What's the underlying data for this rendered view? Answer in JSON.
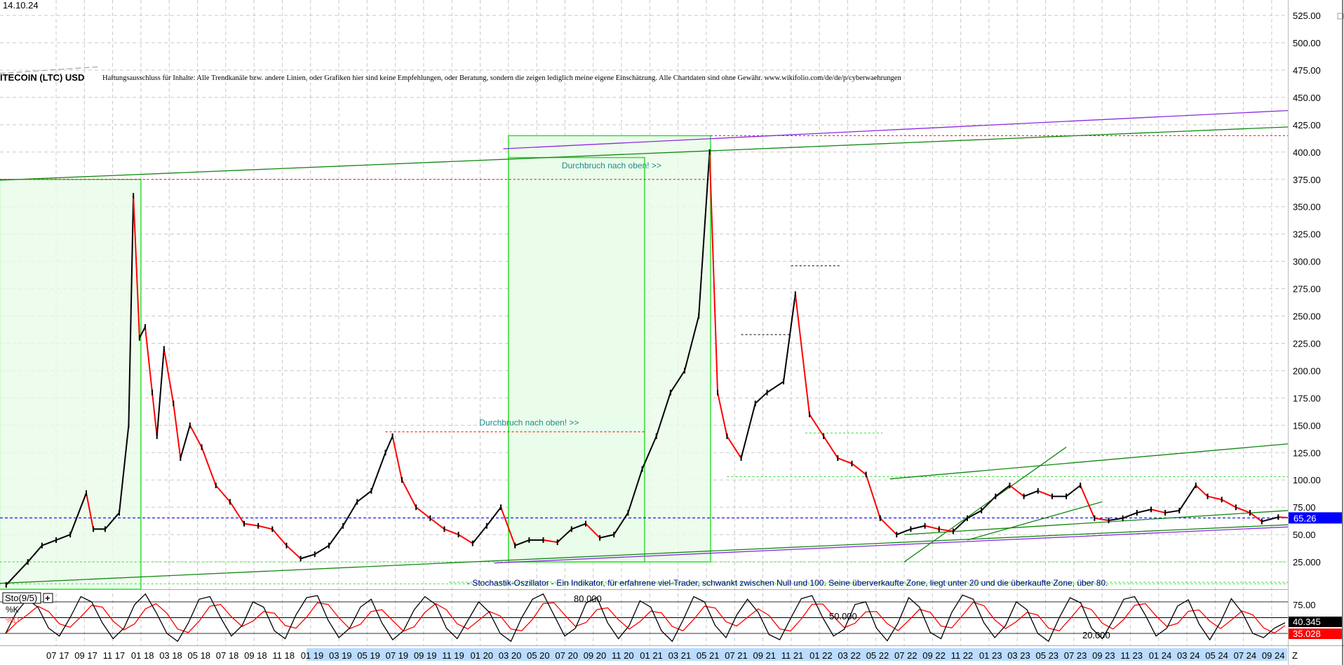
{
  "header": {
    "date": "14.10.24",
    "title": "ITECOIN (LTC) USD",
    "disclaimer": "Haftungsausschluss für Inhalte: Alle Trendkanäle bzw. andere Linien, oder Grafiken hier sind keine Empfehlungen, oder Beratung, sondern die zeigen lediglich meine eigene Einschätzung. Alle Chartdaten sind ohne Gewähr.  www.wikifolio.com/de/de/p/cyberwaehrungen"
  },
  "colors": {
    "up": "#000000",
    "down": "#ff0000",
    "box_fill": "#e8fbe8",
    "box_stroke": "#33dd33",
    "trend_green": "#118811",
    "trend_purple": "#8a2be2",
    "current_price": "#0000ff",
    "stoch_k": "#000000",
    "stoch_d": "#ff0000"
  },
  "chart_data": [
    {
      "type": "line",
      "title": "",
      "x_tick_labels": [
        "07 17",
        "09 17",
        "11 17",
        "01 18",
        "03 18",
        "05 18",
        "07 18",
        "09 18",
        "11 18",
        "01 19",
        "03 19",
        "05 19",
        "07 19",
        "09 19",
        "11 19",
        "01 20",
        "03 20",
        "05 20",
        "07 20",
        "09 20",
        "11 20",
        "01 21",
        "03 21",
        "05 21",
        "07 21",
        "09 21",
        "11 21",
        "01 22",
        "03 22",
        "05 22",
        "07 22",
        "09 22",
        "11 22",
        "01 23",
        "03 23",
        "05 23",
        "07 23",
        "09 23",
        "11 23",
        "01 24",
        "03 24",
        "05 24",
        "07 24",
        "09 24",
        "Z"
      ],
      "y_tick_labels": [
        "525.00",
        "500.00",
        "475.00",
        "450.00",
        "425.00",
        "400.00",
        "375.00",
        "350.00",
        "325.00",
        "300.00",
        "275.00",
        "250.00",
        "225.00",
        "200.00",
        "175.00",
        "150.00",
        "125.00",
        "100.00",
        "75.00",
        "50.00",
        "25.000"
      ],
      "ylim": [
        0,
        525
      ],
      "grid": true,
      "current_price": "65.26",
      "series": [
        {
          "x": [
            "2017-03-15",
            "2017-05-01",
            "2017-06-01",
            "2017-07-01",
            "2017-08-01",
            "2017-09-05",
            "2017-09-20",
            "2017-10-15",
            "2017-11-15",
            "2017-12-05",
            "2017-12-15",
            "2017-12-28",
            "2018-01-10",
            "2018-01-25",
            "2018-02-05",
            "2018-02-20",
            "2018-03-10",
            "2018-03-25",
            "2018-04-15",
            "2018-05-10",
            "2018-06-10",
            "2018-07-10",
            "2018-08-10",
            "2018-09-10",
            "2018-10-10",
            "2018-11-10",
            "2018-12-10",
            "2019-01-10",
            "2019-02-10",
            "2019-03-10",
            "2019-04-10",
            "2019-05-10",
            "2019-06-10",
            "2019-06-25",
            "2019-07-15",
            "2019-08-15",
            "2019-09-15",
            "2019-10-15",
            "2019-11-15",
            "2019-12-15",
            "2020-01-15",
            "2020-02-15",
            "2020-03-15",
            "2020-04-15",
            "2020-05-15",
            "2020-06-15",
            "2020-07-15",
            "2020-08-15",
            "2020-09-15",
            "2020-10-15",
            "2020-11-15",
            "2020-12-15",
            "2021-01-15",
            "2021-02-15",
            "2021-03-15",
            "2021-04-15",
            "2021-05-08",
            "2021-05-25",
            "2021-06-15",
            "2021-07-15",
            "2021-08-15",
            "2021-09-10",
            "2021-10-15",
            "2021-11-10",
            "2021-12-10",
            "2022-01-10",
            "2022-02-10",
            "2022-03-10",
            "2022-04-10",
            "2022-05-10",
            "2022-06-15",
            "2022-07-15",
            "2022-08-15",
            "2022-09-15",
            "2022-10-15",
            "2022-11-15",
            "2022-12-15",
            "2023-01-15",
            "2023-02-15",
            "2023-03-15",
            "2023-04-15",
            "2023-05-15",
            "2023-06-15",
            "2023-07-15",
            "2023-08-15",
            "2023-09-15",
            "2023-10-15",
            "2023-11-15",
            "2023-12-15",
            "2024-01-15",
            "2024-02-15",
            "2024-03-20",
            "2024-04-15",
            "2024-05-15",
            "2024-06-15",
            "2024-07-15",
            "2024-08-10",
            "2024-09-15",
            "2024-10-14"
          ],
          "y": [
            4,
            25,
            40,
            45,
            50,
            88,
            55,
            55,
            70,
            150,
            360,
            230,
            240,
            180,
            140,
            220,
            170,
            120,
            150,
            130,
            95,
            80,
            60,
            58,
            55,
            40,
            28,
            32,
            40,
            58,
            80,
            90,
            125,
            140,
            100,
            75,
            65,
            55,
            50,
            42,
            58,
            75,
            40,
            45,
            45,
            43,
            55,
            60,
            47,
            50,
            70,
            110,
            140,
            180,
            200,
            250,
            400,
            180,
            140,
            120,
            170,
            180,
            190,
            270,
            160,
            140,
            120,
            115,
            105,
            65,
            50,
            55,
            58,
            55,
            53,
            65,
            72,
            85,
            95,
            85,
            90,
            85,
            85,
            95,
            65,
            63,
            65,
            70,
            73,
            70,
            72,
            95,
            85,
            82,
            75,
            70,
            62,
            66,
            65.26
          ]
        }
      ],
      "annotations": {
        "boxes": [
          {
            "from": "2017-03-01",
            "to": "2017-12-31",
            "low": 0,
            "high": 375
          },
          {
            "from": "2020-03-01",
            "to": "2021-05-10",
            "low": 25,
            "high": 415
          },
          {
            "from": "2020-03-01",
            "to": "2020-12-20",
            "low": 25,
            "high": 395
          }
        ],
        "trendlines": [
          {
            "color": "trend_green",
            "from": [
              "2016-12-20",
              373
            ],
            "to": [
              "2024-10-14",
              423
            ],
            "style": "solid"
          },
          {
            "color": "trend_purple",
            "from": [
              "2020-02-20",
              403
            ],
            "to": [
              "2024-10-14",
              438
            ],
            "style": "solid"
          },
          {
            "color": "trend_green",
            "from": [
              "2016-12-20",
              4
            ],
            "to": [
              "2024-10-14",
              59
            ],
            "style": "solid"
          },
          {
            "color": "trend_purple",
            "from": [
              "2020-02-01",
              24
            ],
            "to": [
              "2024-10-14",
              57
            ],
            "style": "solid"
          },
          {
            "color": "trend_green",
            "from": [
              "2022-06-01",
              101
            ],
            "to": [
              "2024-10-14",
              133
            ],
            "style": "solid"
          },
          {
            "color": "trend_green",
            "from": [
              "2022-07-01",
              25
            ],
            "to": [
              "2023-06-15",
              130
            ],
            "style": "solid"
          },
          {
            "color": "trend_green",
            "from": [
              "2022-07-01",
              50
            ],
            "to": [
              "2024-10-14",
              72
            ],
            "style": "solid"
          },
          {
            "color": "trend_green",
            "from": [
              "2022-11-15",
              45
            ],
            "to": [
              "2023-09-01",
              80
            ],
            "style": "solid"
          },
          {
            "color": "#aaaaaa",
            "from": [
              "2016-12-20",
              470
            ],
            "to": [
              "2017-10-01",
              478
            ],
            "style": "dashed"
          }
        ],
        "levels": [
          {
            "price": 375,
            "from": "2016-12-20",
            "to": "2021-05-10",
            "color": "#ff0000"
          },
          {
            "price": 415,
            "from": "2021-05-10",
            "to": "2024-10-14",
            "color": "#ff0000"
          },
          {
            "price": 144,
            "from": "2019-06-10",
            "to": "2020-12-20",
            "color": "#ff0000"
          },
          {
            "price": 233,
            "from": "2021-07-15",
            "to": "2021-11-01",
            "color": "#000000"
          },
          {
            "price": 296,
            "from": "2021-11-01",
            "to": "2022-02-15",
            "color": "#000000"
          },
          {
            "price": 143,
            "from": "2021-12-01",
            "to": "2022-05-15",
            "color": "#33dd33"
          },
          {
            "price": 103,
            "from": "2021-06-15",
            "to": "2024-10-14",
            "color": "#33dd33"
          },
          {
            "price": 25,
            "from": "2016-12-20",
            "to": "2024-10-14",
            "color": "#33dd33"
          },
          {
            "price": 5,
            "from": "2016-12-20",
            "to": "2024-10-14",
            "color": "#33dd33"
          }
        ],
        "labels": [
          {
            "text": "Durchbruch nach oben! >>",
            "date": "2020-12-05",
            "price": 385
          },
          {
            "text": "Durchbruch nach oben! >>",
            "date": "2020-06-10",
            "price": 150
          }
        ],
        "stoch_description": "- Stochastik-Oszillator - Ein Indikator, für erfahrene viel-Trader, schwankt zwischen Null und 100. Seine überverkaufte Zone, liegt unter 20 und die überkaufte Zone, über 80."
      }
    },
    {
      "type": "line",
      "title": "Sto(9/5)",
      "legend": [
        "%K",
        "%D"
      ],
      "ylim": [
        0,
        100
      ],
      "levels": [
        "80.000",
        "50.000",
        "20.000"
      ],
      "y_tick_labels": [
        "75.00"
      ],
      "last_k": "40.345",
      "last_d": "35.028",
      "k": [
        20,
        60,
        85,
        70,
        30,
        15,
        50,
        90,
        80,
        40,
        10,
        30,
        75,
        95,
        60,
        20,
        5,
        40,
        85,
        90,
        50,
        15,
        35,
        80,
        70,
        25,
        10,
        55,
        88,
        92,
        45,
        12,
        30,
        70,
        85,
        40,
        8,
        25,
        65,
        90,
        75,
        30,
        10,
        45,
        80,
        60,
        20,
        5,
        50,
        85,
        95,
        55,
        15,
        30,
        78,
        88,
        40,
        10,
        35,
        82,
        70,
        25,
        5,
        45,
        90,
        80,
        35,
        12,
        55,
        85,
        60,
        18,
        8,
        48,
        86,
        92,
        50,
        15,
        28,
        75,
        80,
        30,
        6,
        40,
        88,
        70,
        22,
        10,
        60,
        93,
        85,
        40,
        12,
        35,
        80,
        65,
        20,
        5,
        50,
        88,
        78,
        30,
        10,
        45,
        85,
        90,
        55,
        15,
        30,
        72,
        84,
        38,
        8,
        42,
        86,
        60,
        20,
        12,
        30,
        40.345
      ]
    }
  ]
}
